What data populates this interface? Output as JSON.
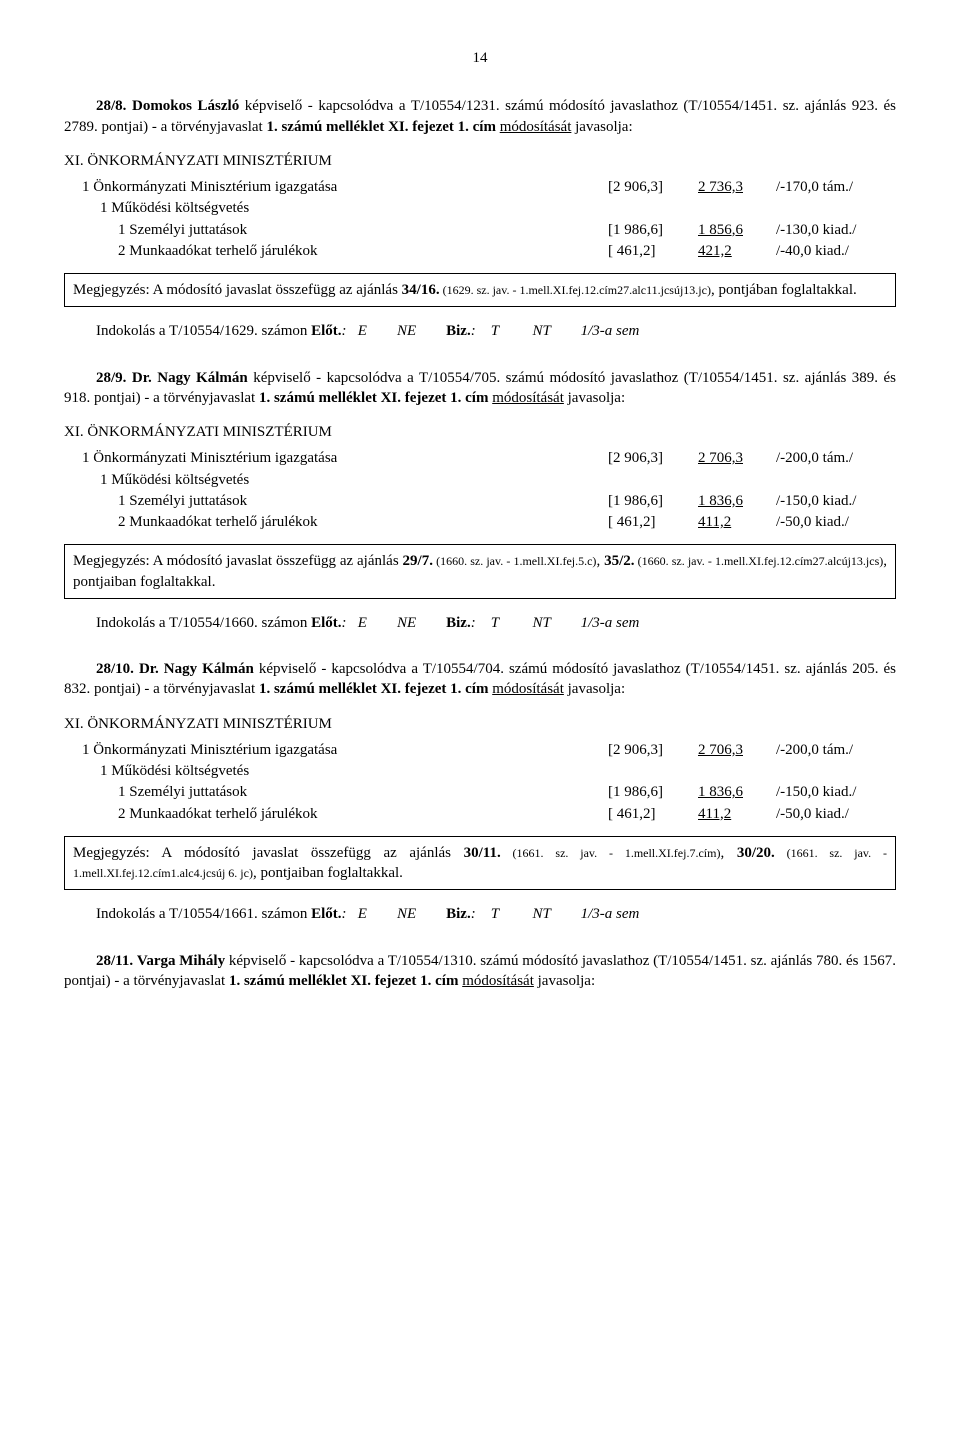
{
  "page_number": "14",
  "sections": [
    {
      "intro_num": "28/8.",
      "intro_name": "Domokos László",
      "intro_rest": " képviselő - kapcsolódva a T/10554/1231. számú módosító javaslathoz (T/10554/1451. sz. ajánlás 923. és 2789. pontjai) -  a törvényjavaslat ",
      "intro_bold2": "1. számú melléklet XI. fejezet 1. cím",
      "intro_tail": " javasolja:",
      "intro_und": "módosítását",
      "ministry": "XI. ÖNKORMÁNYZATI MINISZTÉRIUM",
      "lines": [
        {
          "indent": "i1",
          "label": "1  Önkormányzati Minisztérium igazgatása",
          "c1": "[2 906,3]",
          "c2": "2 736,3",
          "c3": "/-170,0 tám./",
          "c2u": true
        },
        {
          "indent": "i2",
          "label": "1  Működési költségvetés",
          "c1": "",
          "c2": "",
          "c3": ""
        },
        {
          "indent": "i3",
          "label": "1  Személyi juttatások",
          "c1": "[1 986,6]",
          "c2": "1 856,6",
          "c3": "/-130,0 kiad./",
          "c2u": true
        },
        {
          "indent": "i3",
          "label": "2  Munkaadókat terhelő járulékok",
          "c1": "[ 461,2]",
          "c2": "421,2",
          "c3": "/-40,0 kiad./",
          "c2u": true
        }
      ],
      "note_pre": "Megjegyzés: A módosító javaslat összefügg az ajánlás ",
      "note_bold": "34/16.",
      "note_small": " (1629. sz. jav. - 1.mell.XI.fej.12.cím27.alc11.jcsúj13.jc)",
      "note_tail": ", pontjában foglaltakkal.",
      "indok": "Indokolás a T/10554/1629. számon  ",
      "indok_elot": "Előt.",
      "indok_cols": ":   E        NE        ",
      "indok_biz": "Biz.",
      "indok_cols2": ":    T         NT        1/3-a sem"
    },
    {
      "intro_num": "28/9.",
      "intro_name": "Dr. Nagy Kálmán",
      "intro_rest": " képviselő - kapcsolódva a T/10554/705. számú módosító javaslathoz (T/10554/1451. sz. ajánlás 389. és 918. pontjai) -  a törvényjavaslat ",
      "intro_bold2": "1. számú melléklet XI. fejezet 1. cím",
      "intro_tail": " javasolja:",
      "intro_und": "módosítását",
      "ministry": "XI. ÖNKORMÁNYZATI MINISZTÉRIUM",
      "lines": [
        {
          "indent": "i1",
          "label": "1  Önkormányzati Minisztérium igazgatása",
          "c1": "[2 906,3]",
          "c2": "2 706,3",
          "c3": "/-200,0 tám./",
          "c2u": true
        },
        {
          "indent": "i2",
          "label": "1  Működési költségvetés",
          "c1": "",
          "c2": "",
          "c3": ""
        },
        {
          "indent": "i3",
          "label": "1  Személyi juttatások",
          "c1": "[1 986,6]",
          "c2": "1 836,6",
          "c3": "/-150,0 kiad./",
          "c2u": true
        },
        {
          "indent": "i3",
          "label": "2  Munkaadókat terhelő járulékok",
          "c1": "[ 461,2]",
          "c2": "411,2",
          "c3": "/-50,0 kiad./",
          "c2u": true
        }
      ],
      "note_pre": "Megjegyzés: A módosító javaslat összefügg az ajánlás ",
      "note_bold": "29/7.",
      "note_small": " (1660. sz. jav. - 1.mell.XI.fej.5.c)",
      "note_mid": ", ",
      "note_bold_b": "35/2.",
      "note_small_b": " (1660. sz. jav. - 1.mell.XI.fej.12.cím27.alcúj13.jcs)",
      "note_tail": ", pontjaiban foglaltakkal.",
      "indok": "Indokolás a T/10554/1660. számon  ",
      "indok_elot": "Előt.",
      "indok_cols": ":   E        NE        ",
      "indok_biz": "Biz.",
      "indok_cols2": ":    T         NT        1/3-a sem"
    },
    {
      "intro_num": "28/10.",
      "intro_name": "Dr. Nagy Kálmán",
      "intro_rest": " képviselő - kapcsolódva a T/10554/704. számú módosító javaslathoz (T/10554/1451. sz. ajánlás 205. és 832. pontjai) -  a törvényjavaslat ",
      "intro_bold2": "1. számú melléklet XI. fejezet 1. cím",
      "intro_tail": " javasolja:",
      "intro_und": "módosítását",
      "ministry": "XI. ÖNKORMÁNYZATI MINISZTÉRIUM",
      "lines": [
        {
          "indent": "i1",
          "label": "1  Önkormányzati Minisztérium igazgatása",
          "c1": "[2 906,3]",
          "c2": "2 706,3",
          "c3": "/-200,0 tám./",
          "c2u": true
        },
        {
          "indent": "i2",
          "label": "1  Működési költségvetés",
          "c1": "",
          "c2": "",
          "c3": ""
        },
        {
          "indent": "i3",
          "label": "1  Személyi juttatások",
          "c1": "[1 986,6]",
          "c2": "1 836,6",
          "c3": "/-150,0 kiad./",
          "c2u": true
        },
        {
          "indent": "i3",
          "label": "2  Munkaadókat terhelő járulékok",
          "c1": "[ 461,2]",
          "c2": "411,2",
          "c3": "/-50,0 kiad./",
          "c2u": true
        }
      ],
      "note_pre": "Megjegyzés: A módosító javaslat összefügg az ajánlás ",
      "note_bold": "30/11.",
      "note_small": " (1661. sz. jav. - 1.mell.XI.fej.7.cím)",
      "note_mid": ", ",
      "note_bold_b": "30/20.",
      "note_small_b": " (1661. sz. jav. - 1.mell.XI.fej.12.cím1.alc4.jcsúj 6. jc)",
      "note_tail": ", pontjaiban foglaltakkal.",
      "indok": "Indokolás a T/10554/1661. számon  ",
      "indok_elot": "Előt.",
      "indok_cols": ":   E        NE        ",
      "indok_biz": "Biz.",
      "indok_cols2": ":    T         NT        1/3-a sem"
    },
    {
      "intro_num": "28/11.",
      "intro_name": "Varga Mihály",
      "intro_rest": " képviselő - kapcsolódva a T/10554/1310. számú módosító javaslathoz (T/10554/1451. sz. ajánlás 780. és 1567. pontjai) -  a törvényjavaslat ",
      "intro_bold2": "1. számú melléklet XI. fejezet 1. cím",
      "intro_tail": " javasolja:",
      "intro_und": "módosítását"
    }
  ]
}
